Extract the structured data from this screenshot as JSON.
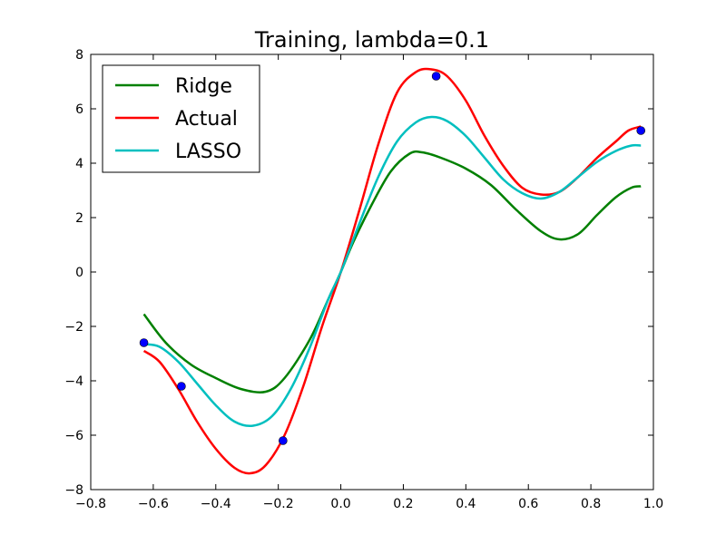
{
  "chart_data": {
    "type": "line",
    "title": "Training, lambda=0.1",
    "xlabel": "",
    "ylabel": "",
    "xlim": [
      -0.8,
      1.0
    ],
    "ylim": [
      -8,
      8
    ],
    "xticks": [
      -0.8,
      -0.6,
      -0.4,
      -0.2,
      0.0,
      0.2,
      0.4,
      0.6,
      0.8,
      1.0
    ],
    "xtick_labels": [
      "−0.8",
      "−0.6",
      "−0.4",
      "−0.2",
      "0.0",
      "0.2",
      "0.4",
      "0.6",
      "0.8",
      "1.0"
    ],
    "yticks": [
      -8,
      -6,
      -4,
      -2,
      0,
      2,
      4,
      6,
      8
    ],
    "ytick_labels": [
      "−8",
      "−6",
      "−4",
      "−2",
      "0",
      "2",
      "4",
      "6",
      "8"
    ],
    "grid": false,
    "legend_position": "top-left",
    "series": [
      {
        "name": "Ridge",
        "color": "#008000",
        "points": [
          [
            -0.63,
            -1.55
          ],
          [
            -0.56,
            -2.6
          ],
          [
            -0.48,
            -3.4
          ],
          [
            -0.4,
            -3.9
          ],
          [
            -0.32,
            -4.3
          ],
          [
            -0.24,
            -4.4
          ],
          [
            -0.18,
            -3.9
          ],
          [
            -0.1,
            -2.5
          ],
          [
            -0.04,
            -1.0
          ],
          [
            0.0,
            0.0
          ],
          [
            0.04,
            1.1
          ],
          [
            0.1,
            2.5
          ],
          [
            0.16,
            3.7
          ],
          [
            0.22,
            4.35
          ],
          [
            0.26,
            4.4
          ],
          [
            0.32,
            4.2
          ],
          [
            0.4,
            3.8
          ],
          [
            0.48,
            3.2
          ],
          [
            0.56,
            2.3
          ],
          [
            0.64,
            1.5
          ],
          [
            0.7,
            1.2
          ],
          [
            0.76,
            1.4
          ],
          [
            0.82,
            2.1
          ],
          [
            0.88,
            2.75
          ],
          [
            0.93,
            3.1
          ],
          [
            0.96,
            3.15
          ]
        ]
      },
      {
        "name": "Actual",
        "color": "#ff0000",
        "points": [
          [
            -0.63,
            -2.9
          ],
          [
            -0.58,
            -3.3
          ],
          [
            -0.52,
            -4.3
          ],
          [
            -0.46,
            -5.5
          ],
          [
            -0.4,
            -6.5
          ],
          [
            -0.34,
            -7.2
          ],
          [
            -0.29,
            -7.4
          ],
          [
            -0.24,
            -7.1
          ],
          [
            -0.18,
            -6.0
          ],
          [
            -0.12,
            -4.2
          ],
          [
            -0.06,
            -2.0
          ],
          [
            0.0,
            0.0
          ],
          [
            0.06,
            2.3
          ],
          [
            0.12,
            4.7
          ],
          [
            0.18,
            6.6
          ],
          [
            0.24,
            7.35
          ],
          [
            0.29,
            7.45
          ],
          [
            0.34,
            7.2
          ],
          [
            0.4,
            6.3
          ],
          [
            0.46,
            5.0
          ],
          [
            0.52,
            3.9
          ],
          [
            0.58,
            3.1
          ],
          [
            0.64,
            2.85
          ],
          [
            0.7,
            2.95
          ],
          [
            0.76,
            3.5
          ],
          [
            0.82,
            4.2
          ],
          [
            0.88,
            4.8
          ],
          [
            0.92,
            5.2
          ],
          [
            0.96,
            5.35
          ]
        ]
      },
      {
        "name": "LASSO",
        "color": "#00bfbf",
        "points": [
          [
            -0.63,
            -2.65
          ],
          [
            -0.58,
            -2.75
          ],
          [
            -0.52,
            -3.3
          ],
          [
            -0.46,
            -4.1
          ],
          [
            -0.4,
            -4.9
          ],
          [
            -0.34,
            -5.5
          ],
          [
            -0.28,
            -5.65
          ],
          [
            -0.22,
            -5.3
          ],
          [
            -0.16,
            -4.3
          ],
          [
            -0.1,
            -2.8
          ],
          [
            -0.04,
            -1.0
          ],
          [
            0.0,
            0.0
          ],
          [
            0.06,
            1.8
          ],
          [
            0.12,
            3.5
          ],
          [
            0.18,
            4.8
          ],
          [
            0.24,
            5.5
          ],
          [
            0.29,
            5.7
          ],
          [
            0.34,
            5.55
          ],
          [
            0.4,
            5.0
          ],
          [
            0.46,
            4.2
          ],
          [
            0.52,
            3.4
          ],
          [
            0.58,
            2.9
          ],
          [
            0.64,
            2.7
          ],
          [
            0.7,
            2.95
          ],
          [
            0.76,
            3.5
          ],
          [
            0.82,
            4.05
          ],
          [
            0.88,
            4.45
          ],
          [
            0.93,
            4.65
          ],
          [
            0.96,
            4.65
          ]
        ]
      }
    ],
    "scatter": {
      "color": "#0000ff",
      "points": [
        [
          -0.63,
          -2.6
        ],
        [
          -0.51,
          -4.2
        ],
        [
          -0.185,
          -6.2
        ],
        [
          0.305,
          7.2
        ],
        [
          0.96,
          5.2
        ]
      ]
    }
  }
}
